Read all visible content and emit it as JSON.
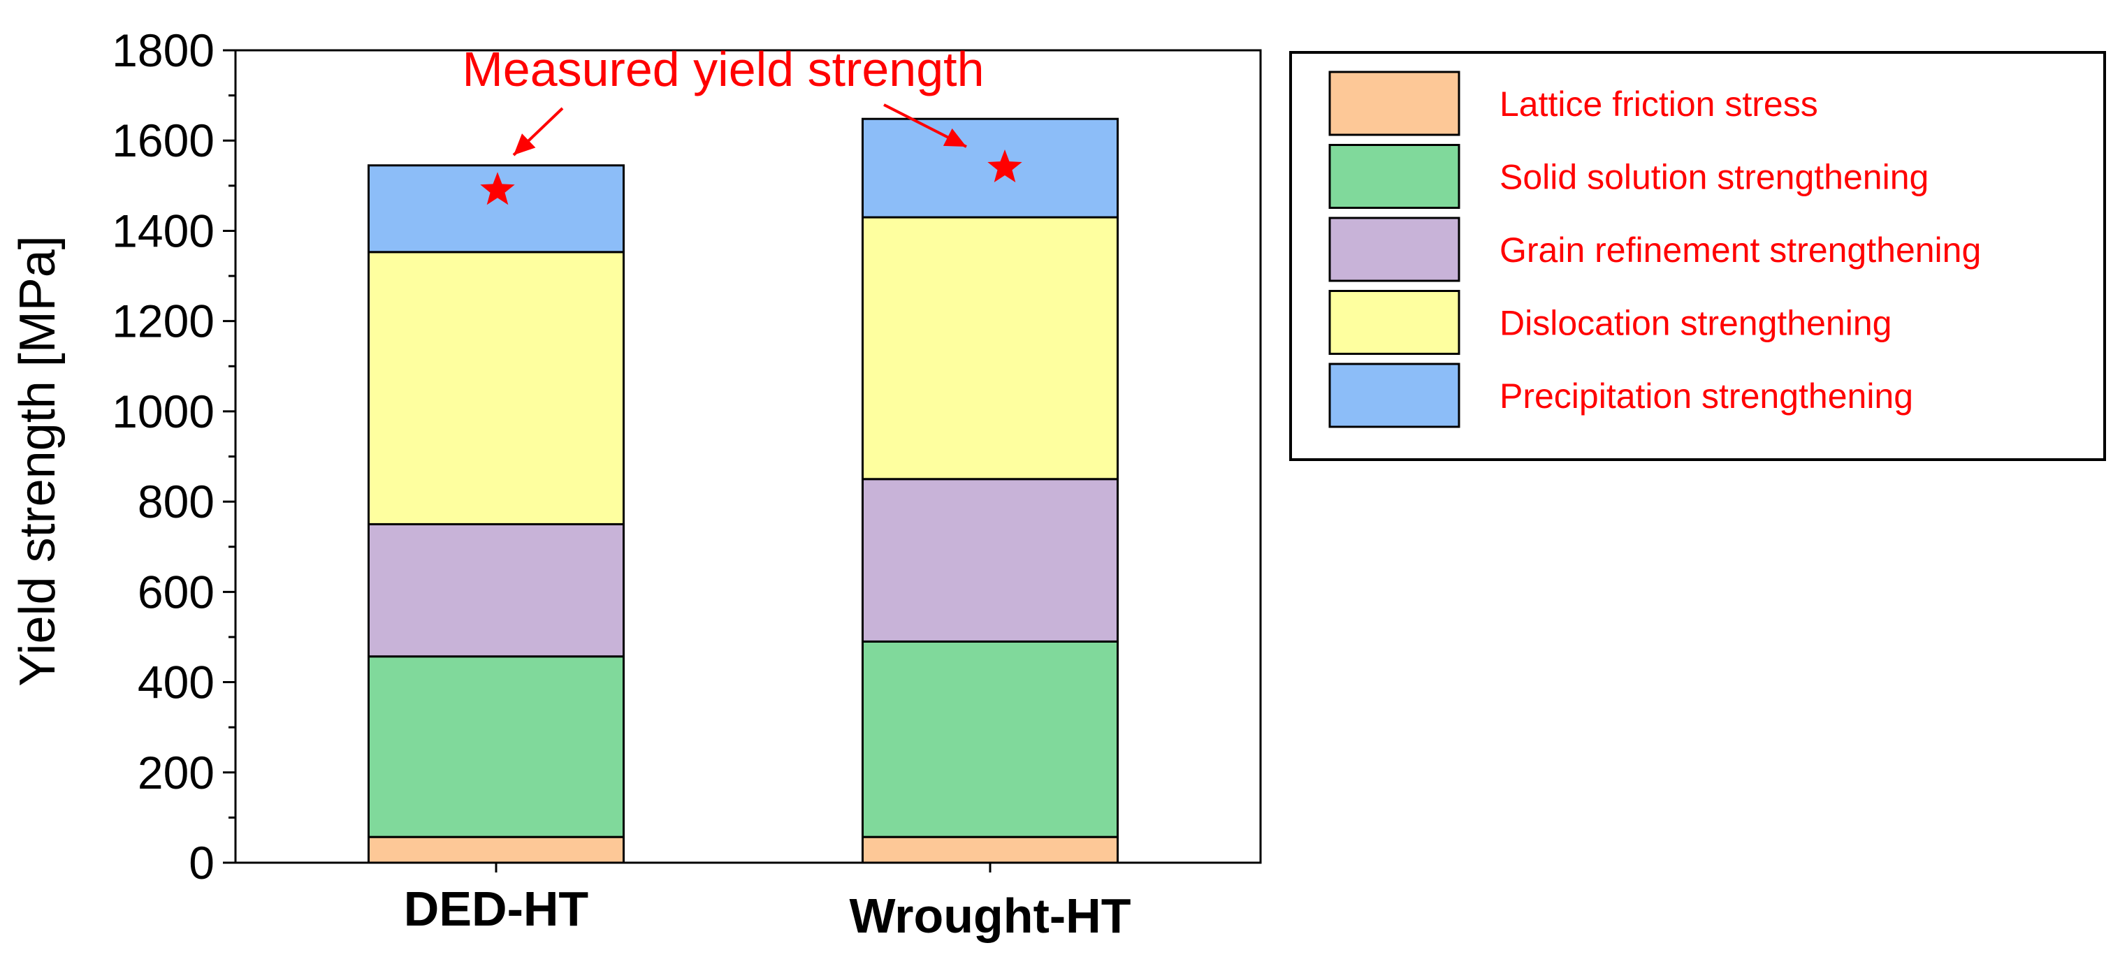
{
  "chart_data": {
    "type": "bar",
    "stacked": true,
    "categories": [
      "DED-HT",
      "Wrought-HT"
    ],
    "ylabel": "Yield strength [MPa]",
    "xlabel": "",
    "ylim": [
      0,
      1800
    ],
    "yticks": [
      0,
      200,
      400,
      600,
      800,
      1000,
      1200,
      1400,
      1600,
      1800
    ],
    "legend_position": "right",
    "series": [
      {
        "name": "Lattice friction stress",
        "color": "#FDC897",
        "values": [
          57,
          57
        ]
      },
      {
        "name": "Solid solution strengthening",
        "color": "#80D99B",
        "values": [
          400,
          433
        ]
      },
      {
        "name": "Grain refinement strengthening",
        "color": "#C8B3D8",
        "values": [
          293,
          360
        ]
      },
      {
        "name": "Dislocation strengthening",
        "color": "#FEFF9F",
        "values": [
          603,
          580
        ]
      },
      {
        "name": "Precipitation strengthening",
        "color": "#8CBDF8",
        "values": [
          192,
          218
        ]
      }
    ],
    "measured": {
      "label": "Measured yield strength",
      "color": "#FF0000",
      "values": [
        1490,
        1540
      ]
    },
    "legend_text_color": "#FF0000"
  }
}
